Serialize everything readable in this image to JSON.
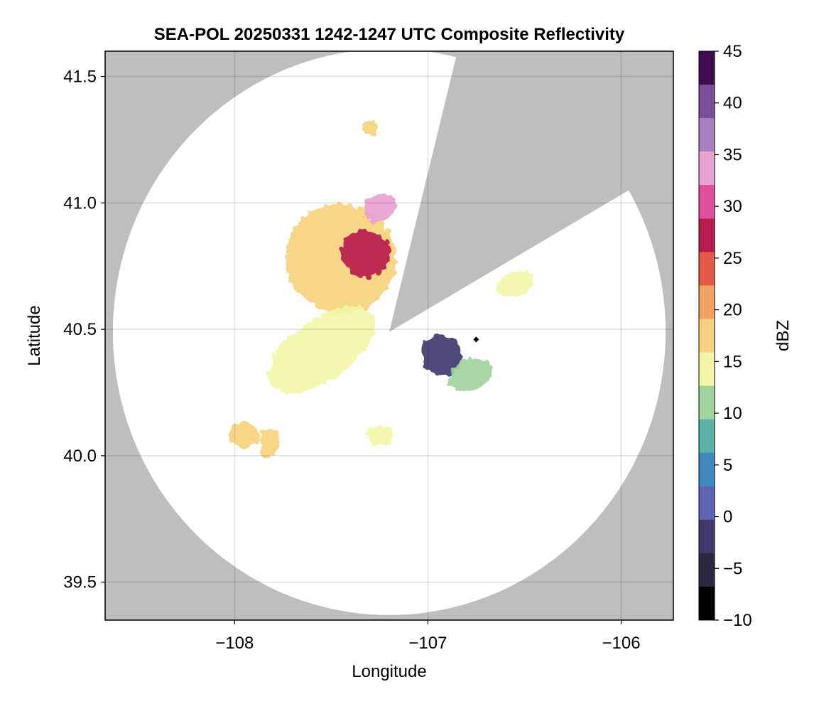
{
  "chart_data": {
    "type": "heatmap",
    "title": "SEA-POL 20250331 1242-1247 UTC Composite Reflectivity",
    "xlabel": "Longitude",
    "ylabel": "Latitude",
    "xlim": [
      -108.67,
      -105.73
    ],
    "ylim": [
      39.35,
      41.6
    ],
    "xticks": [
      -108,
      -107,
      -106
    ],
    "xtick_labels": [
      "−108",
      "−107",
      "−106"
    ],
    "yticks": [
      39.5,
      40.0,
      40.5,
      41.0,
      41.5
    ],
    "ytick_labels": [
      "39.5",
      "40.0",
      "40.5",
      "41.0",
      "41.5"
    ],
    "grid": true,
    "background_color": "#bebebe",
    "radar": {
      "center_lon": -107.2,
      "center_lat": 40.49,
      "max_range_lon_deg": 1.43,
      "max_range_lat_deg": 1.12,
      "blocked_sectors_deg_cw_from_north": [
        [
          14,
          60
        ]
      ]
    },
    "colorbar": {
      "label": "dBZ",
      "min": -10,
      "max": 45,
      "ticks": [
        -10,
        -5,
        0,
        5,
        10,
        15,
        20,
        25,
        30,
        35,
        40,
        45
      ],
      "tick_labels": [
        "−10",
        "−5",
        "0",
        "5",
        "10",
        "15",
        "20",
        "25",
        "30",
        "35",
        "40",
        "45"
      ],
      "colors": [
        "#000000",
        "#2a2740",
        "#3f3a6e",
        "#5d64b3",
        "#3f88c0",
        "#5bb3a7",
        "#a2d39d",
        "#f3f6a8",
        "#f6d27e",
        "#f2a261",
        "#e55a45",
        "#b81c4d",
        "#df4f9b",
        "#e7a2d0",
        "#a77fc1",
        "#7c4d99",
        "#3e0c4f"
      ]
    },
    "echo_regions": [
      {
        "name": "main-band",
        "lon": -107.45,
        "lat": 40.78,
        "rx": 0.28,
        "ry": 0.22,
        "rot": -55,
        "dbz": 16
      },
      {
        "name": "main-band-core",
        "lon": -107.32,
        "lat": 40.8,
        "rx": 0.12,
        "ry": 0.1,
        "rot": -55,
        "dbz": 28
      },
      {
        "name": "north-core",
        "lon": -107.25,
        "lat": 40.98,
        "rx": 0.09,
        "ry": 0.05,
        "rot": -30,
        "dbz": 33
      },
      {
        "name": "south-lobe",
        "lon": -107.55,
        "lat": 40.42,
        "rx": 0.32,
        "ry": 0.12,
        "rot": -35,
        "dbz": 15
      },
      {
        "name": "east-weak",
        "lon": -106.93,
        "lat": 40.4,
        "rx": 0.11,
        "ry": 0.08,
        "rot": 0,
        "dbz": -3
      },
      {
        "name": "east-trail",
        "lon": -106.78,
        "lat": 40.32,
        "rx": 0.12,
        "ry": 0.06,
        "rot": -20,
        "dbz": 11
      },
      {
        "name": "sw-cluster-a",
        "lon": -107.95,
        "lat": 40.08,
        "rx": 0.08,
        "ry": 0.05,
        "rot": 0,
        "dbz": 16
      },
      {
        "name": "sw-cluster-b",
        "lon": -107.82,
        "lat": 40.05,
        "rx": 0.05,
        "ry": 0.06,
        "rot": 0,
        "dbz": 19
      },
      {
        "name": "south-blob",
        "lon": -107.25,
        "lat": 40.08,
        "rx": 0.07,
        "ry": 0.04,
        "rot": 0,
        "dbz": 14
      },
      {
        "name": "north-blob",
        "lon": -107.3,
        "lat": 41.3,
        "rx": 0.04,
        "ry": 0.03,
        "rot": 0,
        "dbz": 17
      },
      {
        "name": "east-scatter",
        "lon": -106.55,
        "lat": 40.68,
        "rx": 0.1,
        "ry": 0.05,
        "rot": -20,
        "dbz": 14
      }
    ],
    "markers": [
      {
        "lon": -106.75,
        "lat": 40.46,
        "shape": "diamond"
      }
    ]
  }
}
